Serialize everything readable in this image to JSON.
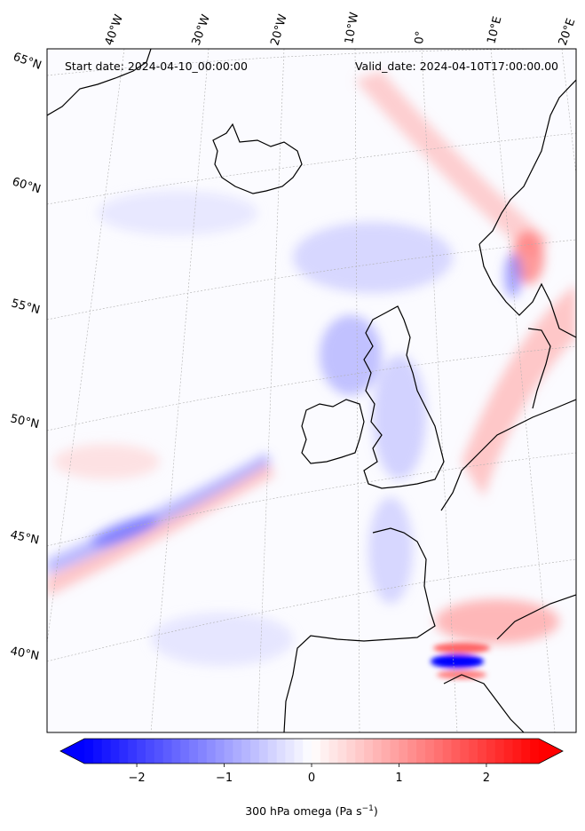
{
  "map": {
    "start_date": "Start date: 2024-04-10_00:00:00",
    "valid_date": "Valid_date: 2024-04-10T17:00:00.00",
    "lon_labels": [
      "40°W",
      "30°W",
      "20°W",
      "10°W",
      "0°",
      "10°E",
      "20°E"
    ],
    "lat_labels": [
      "65°N",
      "60°N",
      "55°N",
      "50°N",
      "45°N",
      "40°N"
    ],
    "field": "300 hPa omega",
    "colormap": {
      "min_color": "#0000ff",
      "mid_color": "#ffffff",
      "max_color": "#ff0000"
    }
  },
  "colorbar": {
    "label_prefix": "300 hPa omega (Pa s",
    "label_exponent": "−1",
    "label_suffix": ")",
    "range": [
      -2.6,
      2.6
    ],
    "ticks": [
      {
        "value": -2,
        "label": "−2"
      },
      {
        "value": -1,
        "label": "−1"
      },
      {
        "value": 0,
        "label": "0"
      },
      {
        "value": 1,
        "label": "1"
      },
      {
        "value": 2,
        "label": "2"
      }
    ],
    "levels": 52
  }
}
